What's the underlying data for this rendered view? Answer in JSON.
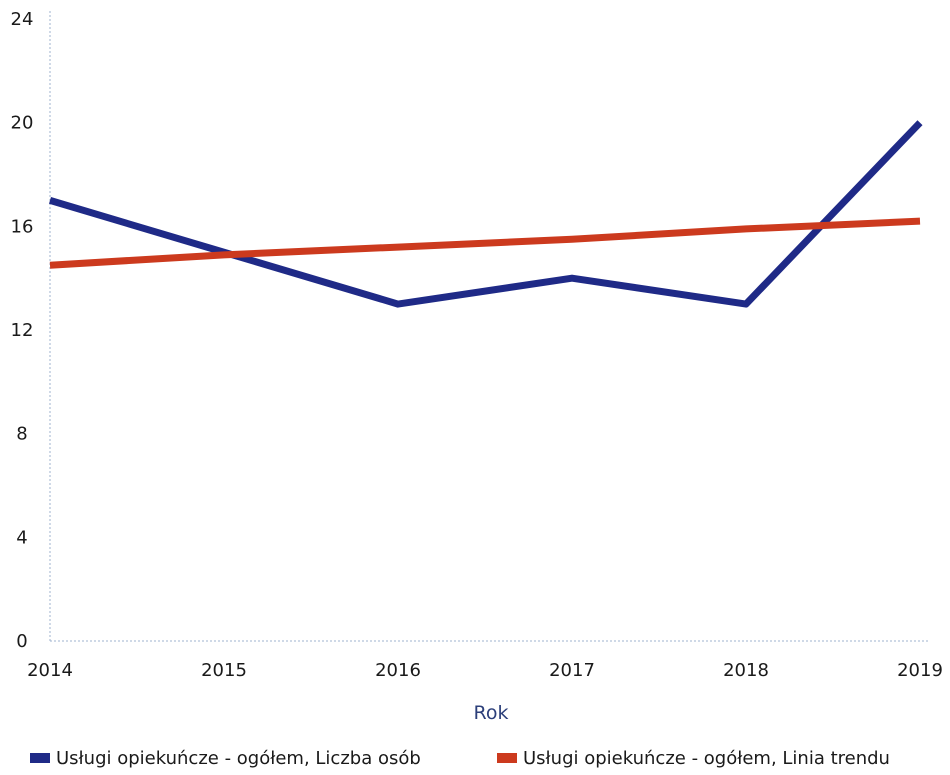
{
  "chart_data": {
    "type": "line",
    "title": "",
    "xlabel": "Rok",
    "ylabel": "",
    "x": [
      "2014",
      "2015",
      "2016",
      "2017",
      "2018",
      "2019"
    ],
    "ylim": [
      0,
      24
    ],
    "y_ticks": [
      0,
      4,
      8,
      12,
      16,
      20,
      24
    ],
    "grid": false,
    "legend_position": "bottom",
    "series": [
      {
        "name": "Usługi opiekuńcze - ogółem, Liczba osób",
        "color": "#1f2a87",
        "values": [
          17,
          15,
          13,
          14,
          13,
          20
        ]
      },
      {
        "name": "Usługi opiekuńcze - ogółem, Linia trendu",
        "color": "#cc3a1e",
        "values": [
          14.5,
          14.9,
          15.2,
          15.5,
          15.9,
          16.2
        ]
      }
    ]
  }
}
